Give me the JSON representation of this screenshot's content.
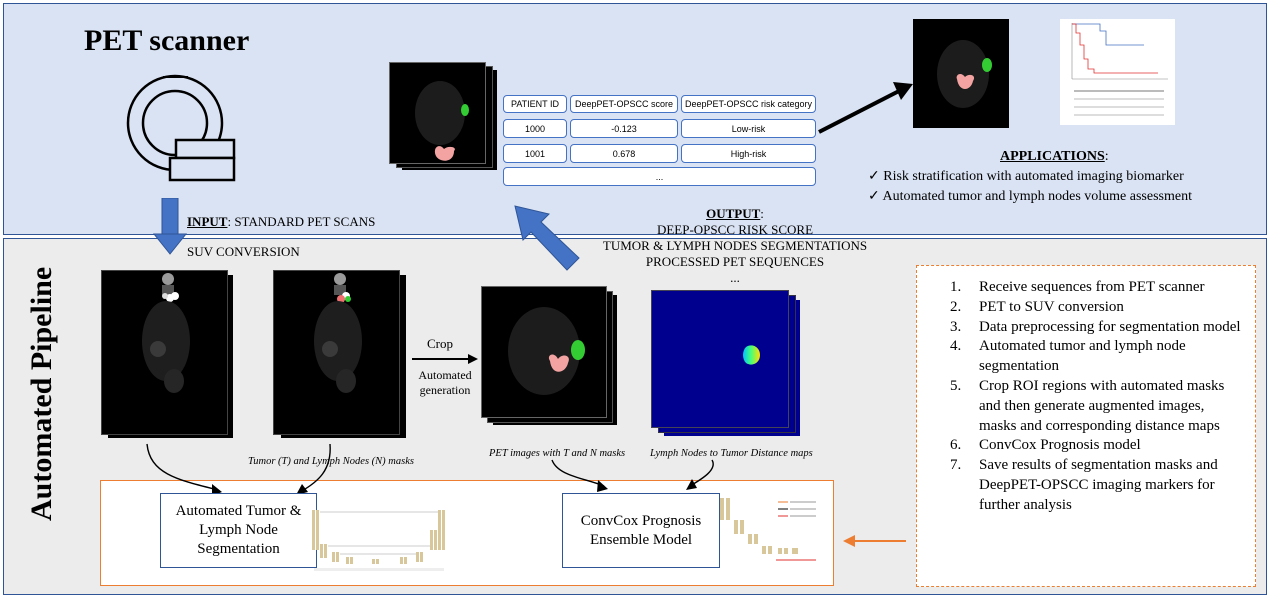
{
  "top": {
    "title": "PET scanner",
    "table": {
      "headers": [
        "PATIENT ID",
        "DeepPET-OPSCC score",
        "DeepPET-OPSCC risk category"
      ],
      "rows": [
        [
          "1000",
          "-0.123",
          "Low-risk"
        ],
        [
          "1001",
          "0.678",
          "High-risk"
        ]
      ],
      "ellipsis": "..."
    },
    "applications": {
      "title": "APPLICATIONS",
      "title_suffix": ":",
      "items": [
        "Risk stratification with automated imaging biomarker",
        "Automated tumor and lymph nodes volume assessment"
      ],
      "check": "✓"
    }
  },
  "io": {
    "input_label": "INPUT",
    "input_text": ": STANDARD PET SCANS",
    "suv": "SUV CONVERSION",
    "output_label": "OUTPUT",
    "output_suffix": ":",
    "output_lines": [
      "DEEP-OPSCC RISK SCORE",
      "TUMOR & LYMPH NODES  SEGMENTATIONS",
      "PROCESSED PET SEQUENCES",
      "..."
    ]
  },
  "pipeline": {
    "title": "Automated Pipeline",
    "crop": "Crop",
    "auto_gen_line1": "Automated",
    "auto_gen_line2": "generation",
    "captions": {
      "masks": "Tumor (T) and Lymph Nodes (N) masks",
      "pet": "PET images with T and N masks",
      "distance": "Lymph Nodes to Tumor Distance maps"
    },
    "seg_model": "Automated Tumor & Lymph Node Segmentation",
    "prog_model": "ConvCox Prognosis Ensemble Model",
    "steps": [
      "Receive sequences from PET scanner",
      "PET to SUV conversion",
      "Data preprocessing for segmentation model",
      "Automated tumor and lymph node segmentation",
      "Crop ROI regions with automated masks and then generate augmented images, masks and corresponding distance maps",
      "ConvCox Prognosis model",
      "Save results of segmentation masks and DeepPET-OPSCC imaging markers for further analysis"
    ]
  },
  "colors": {
    "top_bg": "#dae3f3",
    "bottom_bg": "#ececec",
    "border_blue": "#2f5597",
    "arrow_blue": "#4472c4",
    "orange": "#ed7d31",
    "tumor": "#f4a3a3",
    "node": "#33cc33"
  }
}
